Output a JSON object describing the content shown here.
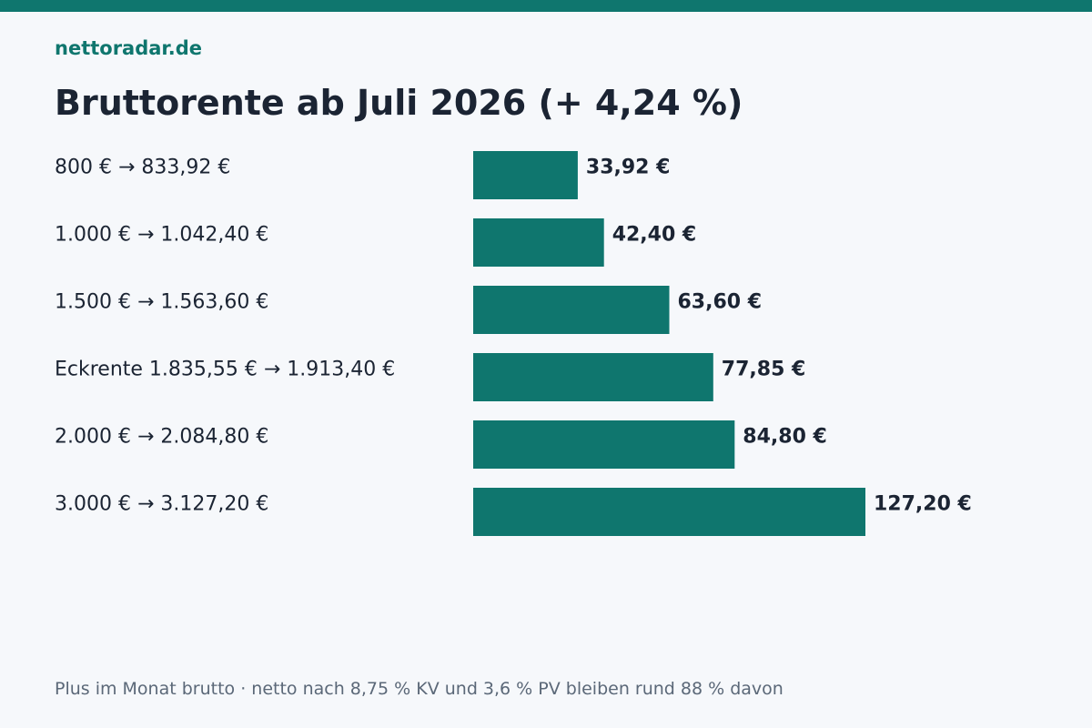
{
  "brand": "nettoradar.de",
  "title": "Bruttorente ab Juli 2026 (+ 4,24 %)",
  "footnote": "Plus im Monat brutto · netto nach 8,75 % KV und 3,6 % PV bleiben rund 88 % davon",
  "colors": {
    "accent": "#0f766e",
    "background": "#f6f8fb",
    "text": "#1b2433",
    "muted": "#5b6878"
  },
  "chart_data": {
    "type": "bar",
    "orientation": "horizontal",
    "categories": [
      "800 € → 833,92 €",
      "1.000 € → 1.042,40 €",
      "1.500 € → 1.563,60 €",
      "Eckrente 1.835,55 € → 1.913,40 €",
      "2.000 € → 2.084,80 €",
      "3.000 € → 3.127,20 €"
    ],
    "values": [
      33.92,
      42.4,
      63.6,
      77.85,
      84.8,
      127.2
    ],
    "value_labels": [
      "33,92 €",
      "42,40 €",
      "63,60 €",
      "77,85 €",
      "84,80 €",
      "127,20 €"
    ],
    "title": "Bruttorente ab Juli 2026 (+ 4,24 %)",
    "xlabel": "",
    "ylabel": "",
    "grid": false,
    "legend": "none"
  }
}
